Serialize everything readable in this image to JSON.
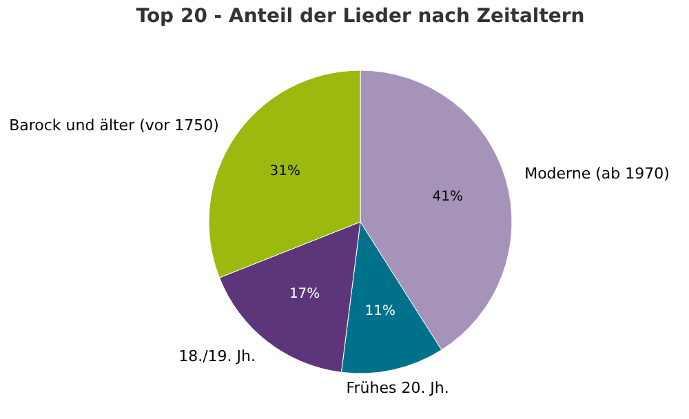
{
  "chart_data": {
    "type": "pie",
    "title": "Top 20 - Anteil der Lieder nach Zeitaltern",
    "categories": [
      "Moderne (ab 1970)",
      "Frühes 20. Jh.",
      "18./19. Jh.",
      "Barock und älter (vor 1750)"
    ],
    "values": [
      41,
      11,
      17,
      31
    ],
    "value_labels": [
      "41%",
      "11%",
      "17%",
      "31%"
    ],
    "colors": [
      "#a593b9",
      "#00718a",
      "#5c357a",
      "#9bb90f"
    ],
    "legend": false
  }
}
